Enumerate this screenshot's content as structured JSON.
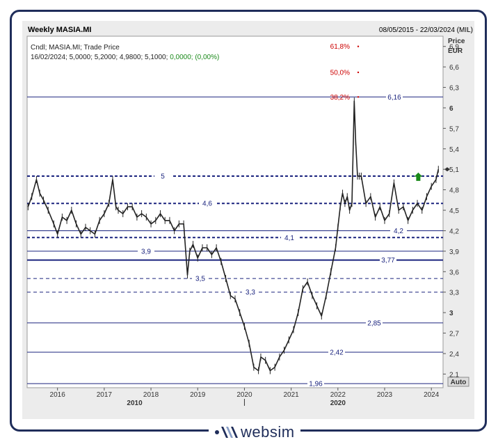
{
  "header": {
    "title": "Weekly MASIA.MI",
    "date_range": "08/05/2015 - 22/03/2024 (MIL)",
    "legend_line1": "Cndl; MASIA.MI; Trade Price",
    "legend_line2_prefix": "16/02/2024; 5,0000; 5,2000; 4,9800; 5,1000;",
    "legend_line2_change": "0,0000; (0,00%)",
    "price_label": "Price",
    "currency_label": "EUR",
    "auto_button": "Auto"
  },
  "logo": {
    "text": "websim"
  },
  "colors": {
    "line_navy": "#1a237e",
    "fib_red": "#cc0000",
    "candle": "#222222",
    "plot_bg": "#ffffff",
    "panel_bg": "#ececec",
    "up_arrow": "#1a8a1a",
    "change_green": "#1a8a1a"
  },
  "chart_data": {
    "type": "line",
    "ylim": [
      1.9,
      7.05
    ],
    "xlim": [
      2015.35,
      2024.25
    ],
    "y_ticks": [
      "2,1",
      "2,4",
      "2,7",
      "3",
      "3,3",
      "3,6",
      "3,9",
      "4,2",
      "4,5",
      "4,8",
      "5,1",
      "5,4",
      "5,7",
      "6",
      "6,3",
      "6,6",
      "6,9"
    ],
    "y_tick_values": [
      2.1,
      2.4,
      2.7,
      3.0,
      3.3,
      3.6,
      3.9,
      4.2,
      4.5,
      4.8,
      5.1,
      5.4,
      5.7,
      6.0,
      6.3,
      6.6,
      6.9
    ],
    "x_year_labels": [
      "2016",
      "2017",
      "2018",
      "2019",
      "2020",
      "2021",
      "2022",
      "2023",
      "2024"
    ],
    "x_year_values": [
      2016,
      2017,
      2018,
      2019,
      2020,
      2021,
      2022,
      2023,
      2024
    ],
    "decade_labels": [
      {
        "label": "2010",
        "x": 2017.65
      },
      {
        "label": "2020",
        "x": 2022.0
      }
    ],
    "horizontal_levels": [
      {
        "label": "5",
        "value": 5.0,
        "style": "dashed-bold"
      },
      {
        "label": "4,6",
        "value": 4.6,
        "style": "dashed-bold"
      },
      {
        "label": "4,2",
        "value": 4.2,
        "style": "solid"
      },
      {
        "label": "4,1",
        "value": 4.1,
        "style": "dashed-bold"
      },
      {
        "label": "3,9",
        "value": 3.9,
        "style": "solid"
      },
      {
        "label": "3,77",
        "value": 3.77,
        "style": "solid-bold"
      },
      {
        "label": "3,5",
        "value": 3.5,
        "style": "dashed"
      },
      {
        "label": "3,3",
        "value": 3.3,
        "style": "dashed"
      },
      {
        "label": "2,85",
        "value": 2.85,
        "style": "solid"
      },
      {
        "label": "2,42",
        "value": 2.42,
        "style": "solid"
      },
      {
        "label": "1,96",
        "value": 1.96,
        "style": "solid"
      },
      {
        "label": "6,16",
        "value": 6.16,
        "style": "solid"
      }
    ],
    "fib_labels": [
      {
        "label": "61,8%",
        "value": 6.9
      },
      {
        "label": "50,0%",
        "value": 6.52
      },
      {
        "label": "38,2%",
        "value": 6.16
      }
    ],
    "price_series": {
      "x": [
        2015.37,
        2015.45,
        2015.55,
        2015.62,
        2015.7,
        2015.8,
        2015.92,
        2016.0,
        2016.1,
        2016.2,
        2016.3,
        2016.4,
        2016.5,
        2016.6,
        2016.7,
        2016.8,
        2016.9,
        2017.0,
        2017.1,
        2017.18,
        2017.25,
        2017.3,
        2017.4,
        2017.5,
        2017.6,
        2017.7,
        2017.8,
        2017.9,
        2018.0,
        2018.1,
        2018.2,
        2018.3,
        2018.4,
        2018.5,
        2018.6,
        2018.7,
        2018.78,
        2018.83,
        2018.9,
        2019.0,
        2019.1,
        2019.2,
        2019.3,
        2019.4,
        2019.5,
        2019.6,
        2019.7,
        2019.8,
        2019.9,
        2020.0,
        2020.1,
        2020.2,
        2020.3,
        2020.35,
        2020.45,
        2020.55,
        2020.65,
        2020.75,
        2020.85,
        2020.95,
        2021.05,
        2021.15,
        2021.25,
        2021.35,
        2021.45,
        2021.55,
        2021.65,
        2021.75,
        2021.85,
        2021.95,
        2022.0,
        2022.05,
        2022.1,
        2022.15,
        2022.2,
        2022.25,
        2022.3,
        2022.35,
        2022.38,
        2022.42,
        2022.46,
        2022.5,
        2022.6,
        2022.7,
        2022.8,
        2022.9,
        2023.0,
        2023.1,
        2023.2,
        2023.3,
        2023.4,
        2023.5,
        2023.6,
        2023.7,
        2023.8,
        2023.9,
        2024.0,
        2024.1,
        2024.15
      ],
      "values": [
        4.55,
        4.7,
        4.95,
        4.75,
        4.65,
        4.5,
        4.3,
        4.15,
        4.4,
        4.35,
        4.5,
        4.3,
        4.15,
        4.25,
        4.2,
        4.15,
        4.35,
        4.45,
        4.6,
        4.95,
        4.55,
        4.5,
        4.45,
        4.55,
        4.55,
        4.4,
        4.45,
        4.4,
        4.3,
        4.35,
        4.45,
        4.35,
        4.35,
        4.2,
        4.3,
        4.3,
        3.55,
        3.9,
        4.0,
        3.8,
        3.95,
        3.95,
        3.85,
        3.95,
        3.75,
        3.5,
        3.25,
        3.2,
        3.0,
        2.8,
        2.55,
        2.2,
        2.15,
        2.35,
        2.3,
        2.15,
        2.2,
        2.35,
        2.45,
        2.6,
        2.75,
        3.0,
        3.35,
        3.45,
        3.25,
        3.1,
        2.95,
        3.25,
        3.6,
        3.95,
        4.25,
        4.55,
        4.75,
        4.6,
        4.7,
        4.5,
        4.6,
        6.1,
        5.5,
        5.0,
        5.0,
        5.0,
        4.6,
        4.7,
        4.4,
        4.55,
        4.35,
        4.45,
        4.9,
        4.5,
        4.55,
        4.35,
        4.5,
        4.6,
        4.5,
        4.7,
        4.85,
        4.95,
        5.1
      ]
    },
    "current_value": 5.1
  }
}
